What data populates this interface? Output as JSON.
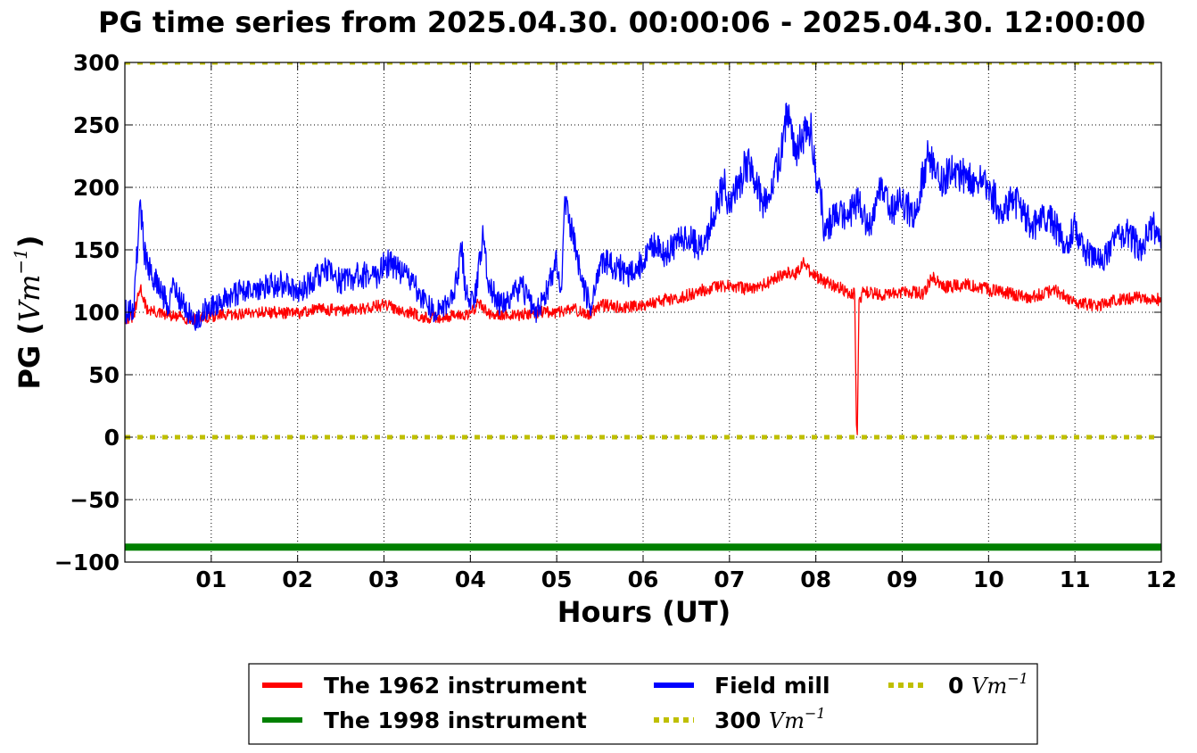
{
  "chart_data": {
    "type": "line",
    "title": "PG time series from 2025.04.30. 00:00:06 - 2025.04.30. 12:00:00",
    "xlabel": "Hours (UT)",
    "ylabel_text": "PG (",
    "ylabel_math": "Vm",
    "ylabel_exp": "−1",
    "ylabel_close": ")",
    "xlim": [
      0,
      12
    ],
    "ylim": [
      -100,
      300
    ],
    "grid": true,
    "legend_position": "bottom-center, below plot",
    "x_ticks": [
      {
        "value": 1,
        "label": "01"
      },
      {
        "value": 2,
        "label": "02"
      },
      {
        "value": 3,
        "label": "03"
      },
      {
        "value": 4,
        "label": "04"
      },
      {
        "value": 5,
        "label": "05"
      },
      {
        "value": 6,
        "label": "06"
      },
      {
        "value": 7,
        "label": "07"
      },
      {
        "value": 8,
        "label": "08"
      },
      {
        "value": 9,
        "label": "09"
      },
      {
        "value": 10,
        "label": "10"
      },
      {
        "value": 11,
        "label": "11"
      },
      {
        "value": 12,
        "label": "12"
      }
    ],
    "y_ticks": [
      {
        "value": 300,
        "label": "300"
      },
      {
        "value": 250,
        "label": "250"
      },
      {
        "value": 200,
        "label": "200"
      },
      {
        "value": 150,
        "label": "150"
      },
      {
        "value": 100,
        "label": "100"
      },
      {
        "value": 50,
        "label": "50"
      },
      {
        "value": 0,
        "label": "0"
      },
      {
        "value": -50,
        "label": "−50"
      },
      {
        "value": -100,
        "label": "−100"
      }
    ],
    "series": [
      {
        "name": "The 1962 instrument",
        "color": "#ff0000",
        "style": "solid",
        "x": [
          0,
          0.1,
          0.18,
          0.25,
          0.35,
          0.5,
          0.65,
          0.8,
          1.0,
          1.25,
          1.5,
          1.75,
          2.0,
          2.25,
          2.5,
          2.75,
          3.0,
          3.25,
          3.5,
          3.75,
          4.0,
          4.1,
          4.25,
          4.4,
          4.5,
          4.75,
          5.0,
          5.2,
          5.35,
          5.5,
          5.75,
          6.0,
          6.25,
          6.5,
          6.75,
          7.0,
          7.25,
          7.5,
          7.65,
          7.75,
          7.85,
          8.0,
          8.25,
          8.45,
          8.47,
          8.48,
          8.5,
          8.55,
          8.75,
          9.0,
          9.25,
          9.35,
          9.5,
          9.75,
          10.0,
          10.25,
          10.5,
          10.75,
          11.0,
          11.25,
          11.5,
          11.75,
          12.0
        ],
        "values": [
          95,
          96,
          120,
          103,
          100,
          97,
          96,
          94,
          97,
          98,
          100,
          100,
          99,
          103,
          101,
          103,
          106,
          101,
          95,
          97,
          99,
          108,
          96,
          99,
          97,
          100,
          100,
          103,
          97,
          106,
          104,
          106,
          110,
          113,
          119,
          121,
          118,
          125,
          133,
          128,
          140,
          128,
          120,
          114,
          10,
          2,
          110,
          116,
          114,
          117,
          115,
          128,
          120,
          122,
          118,
          115,
          112,
          118,
          108,
          105,
          110,
          112,
          110
        ]
      },
      {
        "name": "The 1998 instrument",
        "color": "#008000",
        "style": "solid",
        "x": [
          0,
          12
        ],
        "values": [
          -88,
          -88
        ]
      },
      {
        "name": "Field mill",
        "color": "#0000ff",
        "style": "solid",
        "x": [
          0,
          0.1,
          0.18,
          0.22,
          0.3,
          0.4,
          0.5,
          0.55,
          0.65,
          0.8,
          0.9,
          1.0,
          1.25,
          1.5,
          1.75,
          1.9,
          2.0,
          2.25,
          2.3,
          2.5,
          2.75,
          2.9,
          3.0,
          3.25,
          3.5,
          3.6,
          3.8,
          3.9,
          3.95,
          4.05,
          4.15,
          4.2,
          4.35,
          4.5,
          4.6,
          4.75,
          4.85,
          5.0,
          5.05,
          5.1,
          5.3,
          5.4,
          5.5,
          5.6,
          5.75,
          5.85,
          6.0,
          6.05,
          6.25,
          6.5,
          6.7,
          6.8,
          6.95,
          7.0,
          7.1,
          7.2,
          7.3,
          7.4,
          7.5,
          7.6,
          7.67,
          7.75,
          7.85,
          7.95,
          8.0,
          8.05,
          8.1,
          8.25,
          8.35,
          8.5,
          8.6,
          8.75,
          8.9,
          9.0,
          9.15,
          9.3,
          9.45,
          9.6,
          9.7,
          9.85,
          10.0,
          10.15,
          10.3,
          10.5,
          10.7,
          10.9,
          11.0,
          11.1,
          11.3,
          11.45,
          11.6,
          11.75,
          11.9,
          12.0
        ],
        "values": [
          100,
          103,
          190,
          150,
          130,
          120,
          105,
          122,
          110,
          92,
          100,
          105,
          115,
          118,
          122,
          123,
          115,
          130,
          135,
          125,
          130,
          128,
          140,
          132,
          105,
          100,
          110,
          150,
          115,
          110,
          160,
          125,
          105,
          115,
          120,
          100,
          110,
          140,
          120,
          190,
          120,
          105,
          140,
          138,
          135,
          130,
          140,
          155,
          148,
          160,
          150,
          175,
          205,
          180,
          200,
          220,
          205,
          185,
          200,
          230,
          265,
          225,
          240,
          245,
          205,
          200,
          165,
          180,
          175,
          190,
          165,
          200,
          180,
          190,
          175,
          230,
          205,
          215,
          210,
          205,
          200,
          180,
          190,
          170,
          175,
          155,
          170,
          150,
          140,
          155,
          165,
          150,
          170,
          155
        ]
      },
      {
        "name": "300 Vm−1",
        "legend_value": "300",
        "legend_unit": "Vm",
        "legend_exp": "−1",
        "color": "#bfbf00",
        "style": "dotted",
        "x": [
          0,
          12
        ],
        "values": [
          300,
          300
        ]
      },
      {
        "name": "0 Vm−1",
        "legend_value": "0",
        "legend_unit": "Vm",
        "legend_exp": "−1",
        "color": "#bfbf00",
        "style": "dotted",
        "x": [
          0,
          12
        ],
        "values": [
          0,
          0
        ]
      }
    ]
  }
}
